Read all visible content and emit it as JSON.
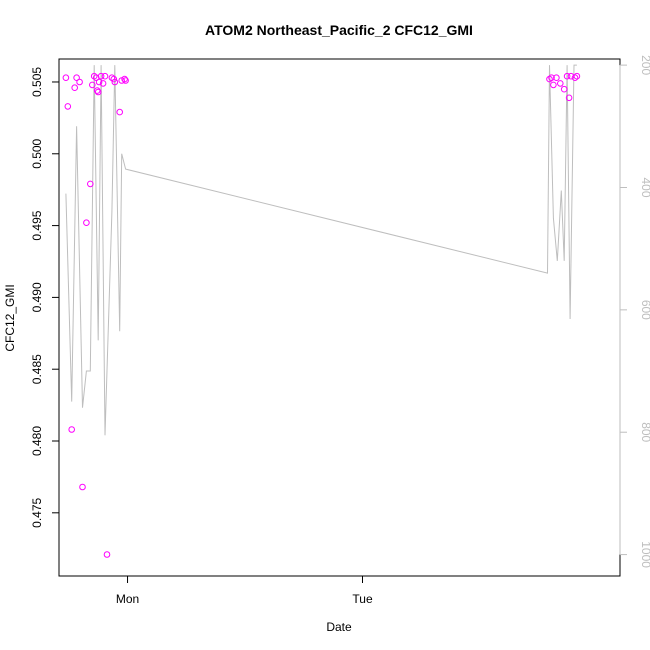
{
  "chart_data": {
    "type": "scatter",
    "title": "ATOM2 Northeast_Pacific_2 CFC12_GMI",
    "xlabel": "Date",
    "ylabel": "CFC12_GMI",
    "x_ticks": [
      "Mon",
      "Tue"
    ],
    "y_ticks": [
      "0.475",
      "0.480",
      "0.485",
      "0.490",
      "0.495",
      "0.500",
      "0.505"
    ],
    "y2_ticks": [
      "200",
      "400",
      "600",
      "800",
      "1000"
    ],
    "x_range_hours": [
      -7.0,
      50.3
    ],
    "ylim": [
      0.4706,
      0.5066
    ],
    "y2lim": [
      1035,
      190
    ],
    "y2_reversed": true,
    "grid": false,
    "legend": "none",
    "colors": {
      "points": "#ff00ff",
      "line": "#bebebe",
      "frame": "#000000",
      "right_axis": "#bebebe"
    },
    "series": [
      {
        "kind": "points",
        "x_hours": [
          -6.3,
          -6.1,
          -5.7,
          -5.4,
          -5.2,
          -4.9,
          -4.6,
          -4.2,
          -3.8,
          -3.6,
          -3.4,
          -3.2,
          -3.1,
          -3.0,
          -2.9,
          -2.7,
          -2.5,
          -2.3,
          -2.1,
          -1.6,
          -1.4,
          -1.3,
          -0.8,
          -0.6,
          -0.3,
          -0.2,
          43.1,
          43.3,
          43.5,
          43.8,
          44.2,
          44.6,
          44.9,
          45.1,
          45.3,
          45.7,
          45.9
        ],
        "values": [
          0.5053,
          0.5033,
          0.4808,
          0.5046,
          0.5053,
          0.505,
          0.4768,
          0.4952,
          0.4979,
          0.5048,
          0.5054,
          0.5053,
          0.5044,
          0.5043,
          0.505,
          0.5054,
          0.5049,
          0.5054,
          0.4721,
          0.5053,
          0.5052,
          0.505,
          0.5029,
          0.5051,
          0.5052,
          0.5051,
          0.5052,
          0.5053,
          0.5048,
          0.5053,
          0.5049,
          0.5045,
          0.5054,
          0.5039,
          0.5054,
          0.5053,
          0.5054
        ]
      },
      {
        "kind": "line",
        "x_hours": [
          -6.3,
          -5.7,
          -5.2,
          -4.6,
          -4.2,
          -3.8,
          -3.4,
          -3.0,
          -2.7,
          -2.3,
          -1.6,
          -1.3,
          -0.8,
          -0.6,
          -0.2,
          42.9,
          43.1,
          43.5,
          43.9,
          44.3,
          44.6,
          44.9,
          45.2,
          45.6,
          45.9
        ],
        "values": [
          410,
          750,
          300,
          760,
          700,
          700,
          200,
          650,
          200,
          805,
          440,
          200,
          635,
          345,
          370,
          540,
          200,
          450,
          520,
          405,
          520,
          200,
          615,
          200,
          200
        ]
      }
    ]
  }
}
